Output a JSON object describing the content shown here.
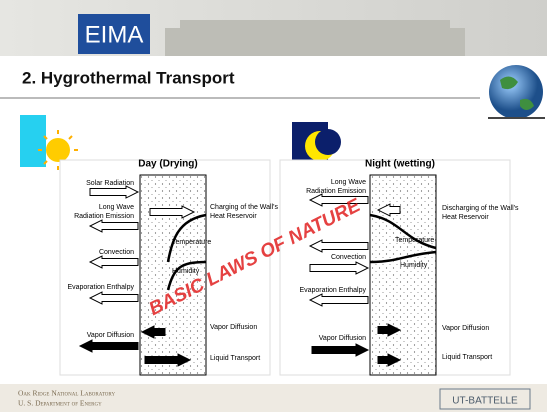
{
  "header": {
    "logo": "EIMA",
    "title": "2. Hygrothermal Transport"
  },
  "panels": [
    {
      "title": "Day (Drying)",
      "outside_labels": [
        [
          "Solar Radiation"
        ],
        [
          "Long Wave",
          "Radiation Emission"
        ],
        [
          "Convection"
        ],
        [
          "Evaporation Enthalpy"
        ],
        [
          "Vapor Diffusion"
        ]
      ],
      "inside_labels": [
        [
          "Charging of the Wall's",
          "Heat Reservoir"
        ],
        [
          "Temperature"
        ],
        [
          "Humidity"
        ],
        [
          "Vapor Diffusion"
        ],
        [
          "Liquid Transport"
        ]
      ]
    },
    {
      "title": "Night (wetting)",
      "outside_labels": [
        [
          "Long Wave",
          "Radiation Emission"
        ],
        [
          "Convection"
        ],
        [
          "Evaporation Enthalpy"
        ],
        [
          "Vapor Diffusion"
        ]
      ],
      "inside_labels": [
        [
          "Discharging of the Wall's",
          "Heat Reservoir"
        ],
        [
          "Temperature"
        ],
        [
          "Humidity"
        ],
        [
          "Vapor Diffusion"
        ],
        [
          "Liquid Transport"
        ]
      ]
    }
  ],
  "overlay": "BASIC LAWS OF NATURE",
  "footer": {
    "lab": "Oak Ridge National Laboratory",
    "department": "U. S. Department of Energy",
    "partner": "UT-BATTELLE"
  }
}
